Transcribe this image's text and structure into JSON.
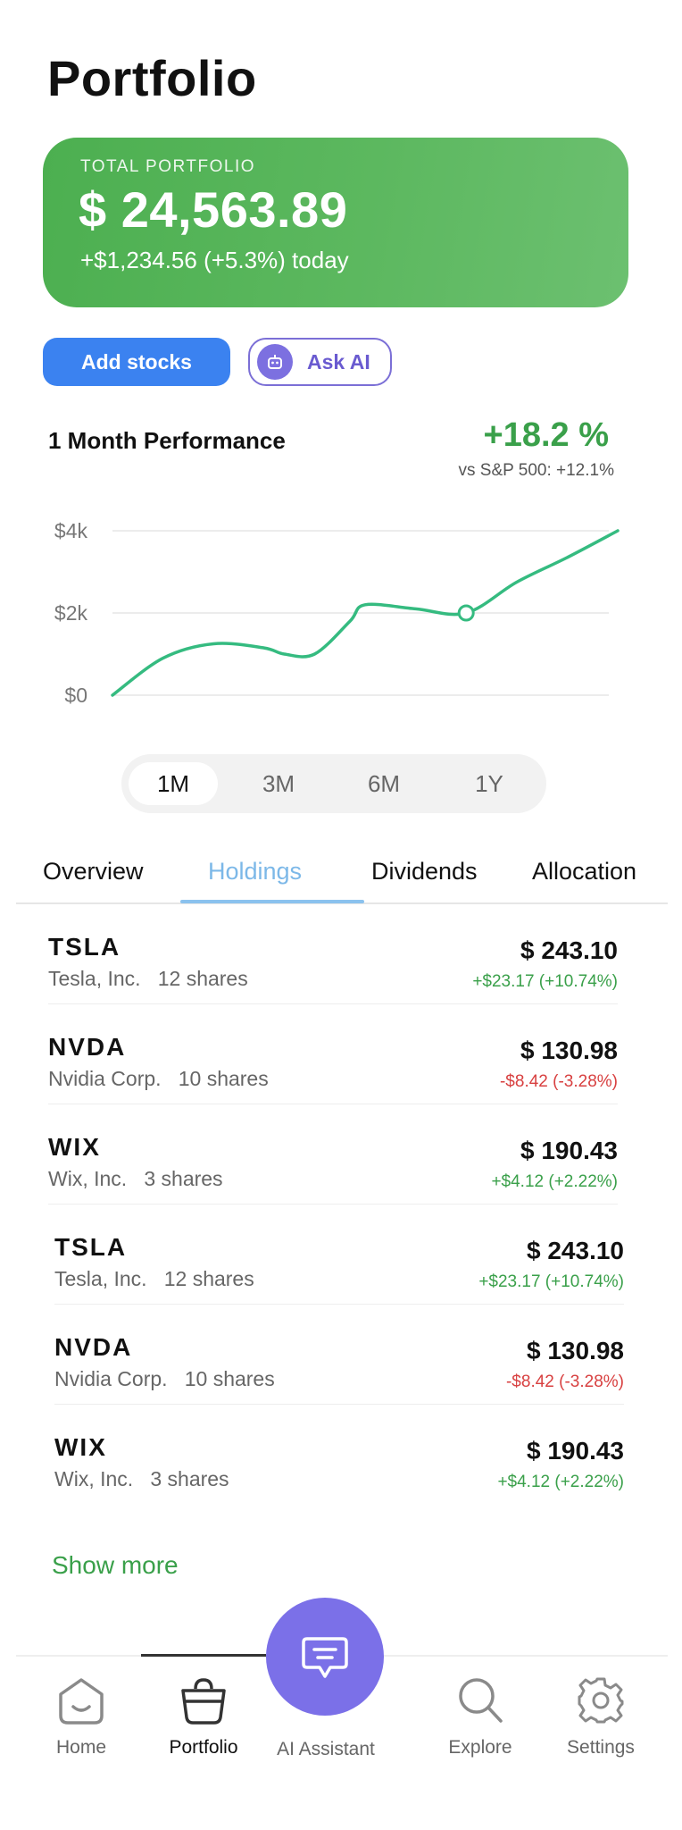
{
  "page": {
    "title": "Portfolio"
  },
  "summary": {
    "label": "TOTAL PORTFOLIO",
    "total": "$ 24,563.89",
    "change": "+$1,234.56 (+5.3%) today"
  },
  "actions": {
    "add_stocks": "Add stocks",
    "ask_ai": "Ask AI"
  },
  "performance": {
    "title": "1 Month Performance",
    "value": "+18.2 %",
    "benchmark": "vs S&P 500: +12.1%"
  },
  "chart_data": {
    "type": "line",
    "title": "",
    "xlabel": "",
    "ylabel": "",
    "ytick_labels": [
      "$0",
      "$2k",
      "$4k"
    ],
    "yticks": [
      0,
      2000,
      4000
    ],
    "ylim": [
      0,
      4000
    ],
    "xlim": [
      0,
      10
    ],
    "grid": true,
    "series": [
      {
        "name": "",
        "x": [
          0,
          1,
          2,
          3,
          3.4,
          4,
          4.7,
          5,
          6,
          7,
          8,
          9,
          10
        ],
        "y": [
          0,
          900,
          1250,
          1150,
          1000,
          1000,
          1800,
          2200,
          2100,
          2000,
          2750,
          3350,
          4000
        ]
      }
    ],
    "highlight_point": {
      "x": 7,
      "y": 2000
    },
    "color": "#35bb80"
  },
  "ranges": [
    {
      "label": "1M",
      "active": true
    },
    {
      "label": "3M",
      "active": false
    },
    {
      "label": "6M",
      "active": false
    },
    {
      "label": "1Y",
      "active": false
    }
  ],
  "tabs": [
    {
      "label": "Overview",
      "active": false
    },
    {
      "label": "Holdings",
      "active": true
    },
    {
      "label": "Dividends",
      "active": false
    },
    {
      "label": "Allocation",
      "active": false
    }
  ],
  "holdings": [
    {
      "ticker": "TSLA",
      "name": "Tesla, Inc.",
      "shares": "12 shares",
      "price": "$ 243.10",
      "delta": "+$23.17 (+10.74%)",
      "dir": "pos"
    },
    {
      "ticker": "NVDA",
      "name": "Nvidia Corp.",
      "shares": "10 shares",
      "price": "$ 130.98",
      "delta": "-$8.42 (-3.28%)",
      "dir": "neg"
    },
    {
      "ticker": "WIX",
      "name": "Wix, Inc.",
      "shares": "3 shares",
      "price": "$ 190.43",
      "delta": "+$4.12 (+2.22%)",
      "dir": "pos"
    },
    {
      "ticker": "TSLA",
      "name": "Tesla, Inc.",
      "shares": "12 shares",
      "price": "$ 243.10",
      "delta": "+$23.17 (+10.74%)",
      "dir": "pos"
    },
    {
      "ticker": "NVDA",
      "name": "Nvidia Corp.",
      "shares": "10 shares",
      "price": "$ 130.98",
      "delta": "-$8.42 (-3.28%)",
      "dir": "neg"
    },
    {
      "ticker": "WIX",
      "name": "Wix, Inc.",
      "shares": "3 shares",
      "price": "$ 190.43",
      "delta": "+$4.12 (+2.22%)",
      "dir": "pos"
    }
  ],
  "show_more": "Show more",
  "nav": {
    "items": [
      {
        "label": "Home",
        "icon": "home-icon",
        "active": false
      },
      {
        "label": "Portfolio",
        "icon": "bag-icon",
        "active": true
      },
      {
        "label": "AI Assistant",
        "icon": "chat-icon",
        "active": false
      },
      {
        "label": "Explore",
        "icon": "search-icon",
        "active": false
      },
      {
        "label": "Settings",
        "icon": "gear-icon",
        "active": false
      }
    ]
  },
  "colors": {
    "positive": "#3aa04a",
    "negative": "#d84040",
    "primary": "#3b82f0",
    "ai": "#7b70e8"
  }
}
